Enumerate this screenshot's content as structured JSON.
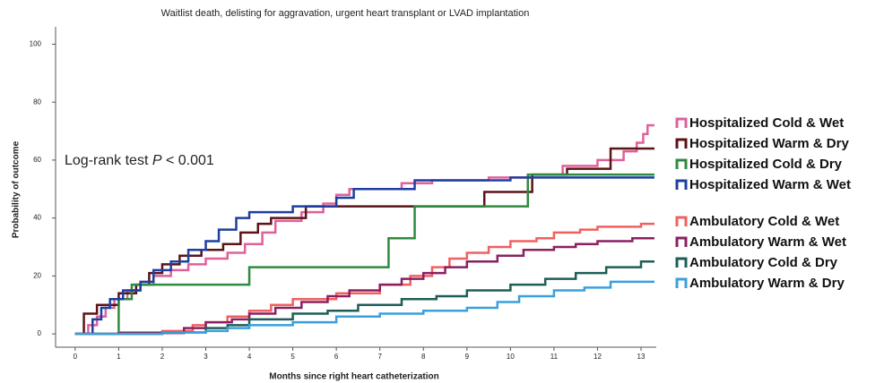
{
  "chart_data": {
    "type": "step",
    "title": "Waitlist death, delisting for aggravation, urgent heart transplant or LVAD implantation",
    "xlabel": "Months since right heart catheterization",
    "ylabel": "Probability of outcome",
    "annotation": [
      "Log-rank test",
      "P",
      "< 0.001"
    ],
    "xlim": [
      -0.45,
      13.35
    ],
    "ylim": [
      -4.6,
      106
    ],
    "xticks": [
      0,
      1,
      2,
      3,
      4,
      5,
      6,
      7,
      8,
      9,
      10,
      11,
      12,
      13
    ],
    "yticks": [
      0,
      20,
      40,
      60,
      80,
      100
    ],
    "series": [
      {
        "name": "Hospitalized Cold & Wet",
        "color": "#e0609a",
        "x": [
          0,
          0.3,
          0.5,
          0.7,
          0.9,
          1.2,
          1.5,
          1.8,
          2.2,
          2.6,
          3,
          3.5,
          3.9,
          4.3,
          4.6,
          5.2,
          5.7,
          6,
          6.3,
          7.5,
          8.2,
          9.5,
          10.5,
          11.2,
          12,
          12.6,
          12.9,
          13.05,
          13.15
        ],
        "values": [
          0,
          3,
          6,
          9,
          12,
          15,
          17,
          20,
          22,
          24,
          26,
          28,
          31,
          35,
          39,
          42,
          45,
          48,
          50,
          52,
          53,
          54,
          55,
          58,
          60,
          63,
          66,
          69,
          72
        ]
      },
      {
        "name": "Hospitalized Warm & Dry",
        "color": "#5a1418",
        "x": [
          0,
          0.2,
          0.5,
          1.0,
          1.4,
          1.7,
          2.0,
          2.4,
          2.9,
          3.4,
          3.8,
          4.2,
          4.5,
          5.3,
          9.4,
          10.5,
          11.3,
          12.3
        ],
        "values": [
          0,
          7,
          10,
          14,
          17,
          21,
          24,
          27,
          29,
          31,
          35,
          38,
          40,
          44,
          49,
          55,
          57,
          64
        ]
      },
      {
        "name": "Hospitalized Cold & Dry",
        "color": "#2e8b3e",
        "x": [
          0,
          1.0,
          1.3,
          4.0,
          7.2,
          7.8,
          10.4
        ],
        "values": [
          0,
          12,
          17,
          23,
          33,
          44,
          55
        ]
      },
      {
        "name": "Hospitalized Warm & Wet",
        "color": "#1f3fa0",
        "x": [
          0,
          0.4,
          0.6,
          0.8,
          1.1,
          1.5,
          1.8,
          2.2,
          2.6,
          3.0,
          3.3,
          3.7,
          4.0,
          5.0,
          6.0,
          6.4,
          7.8,
          10.0
        ],
        "values": [
          0,
          5,
          9,
          12,
          15,
          18,
          22,
          25,
          29,
          32,
          36,
          40,
          42,
          44,
          47,
          50,
          53,
          54
        ]
      },
      {
        "name": "Ambulatory Cold & Wet",
        "color": "#f06060",
        "x": [
          0,
          1,
          2,
          2.7,
          3,
          3.5,
          4,
          4.5,
          5,
          6,
          7,
          7.7,
          8.2,
          8.6,
          9,
          9.5,
          10,
          10.6,
          11,
          11.6,
          12,
          13
        ],
        "values": [
          0,
          0.5,
          1,
          3,
          4,
          6,
          8,
          10,
          12,
          14,
          17,
          20,
          23,
          26,
          28,
          30,
          32,
          33,
          35,
          36,
          37,
          38
        ]
      },
      {
        "name": "Ambulatory Warm & Wet",
        "color": "#8b2060",
        "x": [
          0,
          1,
          2.5,
          3,
          3.6,
          4,
          4.6,
          5.2,
          5.8,
          6.3,
          7,
          7.5,
          8,
          8.5,
          9,
          9.7,
          10.3,
          11,
          11.5,
          12,
          12.8
        ],
        "values": [
          0,
          0.3,
          2,
          4,
          5,
          7,
          9,
          11,
          13,
          15,
          17,
          19,
          21,
          23,
          25,
          27,
          29,
          30,
          31,
          32,
          33
        ]
      },
      {
        "name": "Ambulatory Cold & Dry",
        "color": "#1e5e58",
        "x": [
          0,
          2,
          3,
          3.5,
          4,
          5,
          5.8,
          6.5,
          7.5,
          8.3,
          9,
          10,
          10.8,
          11.5,
          12.2,
          13
        ],
        "values": [
          0,
          0.5,
          2,
          3,
          5,
          7,
          8,
          10,
          12,
          13,
          15,
          17,
          19,
          21,
          23,
          25
        ]
      },
      {
        "name": "Ambulatory Warm & Dry",
        "color": "#3aa0dc",
        "x": [
          0,
          2,
          3,
          3.5,
          4,
          5,
          6,
          7,
          8,
          9,
          9.7,
          10.2,
          11,
          11.7,
          12.3
        ],
        "values": [
          0,
          0.5,
          1,
          2,
          3,
          4,
          6,
          7,
          8,
          9,
          11,
          13,
          15,
          16,
          18
        ]
      }
    ]
  }
}
